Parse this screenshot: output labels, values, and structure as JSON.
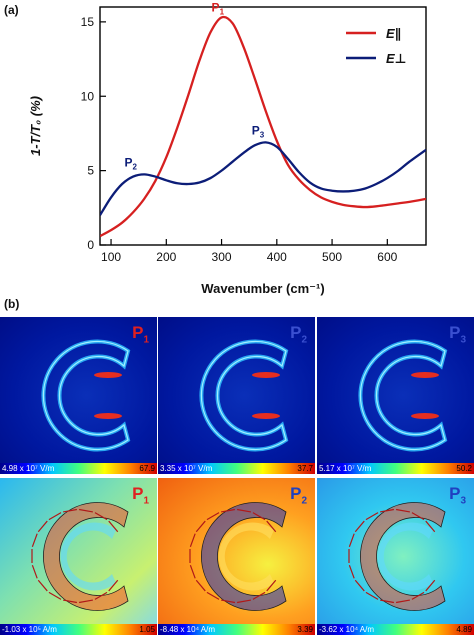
{
  "panel_a_label": "(a)",
  "panel_b_label": "(b)",
  "chart_data": {
    "type": "line",
    "xlabel": "Wavenumber (cm⁻¹)",
    "ylabel": "1-T/T₀ (%)",
    "xlim": [
      80,
      670
    ],
    "ylim": [
      0,
      16
    ],
    "xticks": [
      100,
      200,
      300,
      400,
      500,
      600
    ],
    "yticks": [
      0,
      5,
      10,
      15
    ],
    "legend_position": "top-right",
    "series": [
      {
        "name": "E∥",
        "color": "#d62020",
        "x": [
          80,
          100,
          120,
          140,
          160,
          180,
          200,
          220,
          240,
          260,
          280,
          300,
          320,
          340,
          360,
          380,
          400,
          420,
          440,
          460,
          480,
          500,
          520,
          540,
          560,
          580,
          600,
          620,
          640,
          670
        ],
        "y": [
          0.6,
          1.0,
          1.5,
          2.2,
          3.1,
          4.3,
          5.9,
          7.9,
          10.1,
          12.4,
          14.3,
          15.3,
          14.9,
          13.3,
          11.2,
          9.0,
          7.0,
          5.4,
          4.4,
          3.7,
          3.2,
          2.9,
          2.7,
          2.6,
          2.55,
          2.6,
          2.7,
          2.8,
          2.9,
          3.1
        ]
      },
      {
        "name": "E⊥",
        "color": "#0c1d78",
        "x": [
          80,
          100,
          120,
          140,
          160,
          180,
          200,
          220,
          240,
          260,
          280,
          300,
          320,
          340,
          360,
          380,
          400,
          420,
          440,
          460,
          480,
          500,
          520,
          540,
          560,
          580,
          600,
          620,
          640,
          670
        ],
        "y": [
          2.0,
          3.2,
          4.1,
          4.6,
          4.75,
          4.6,
          4.35,
          4.15,
          4.1,
          4.2,
          4.5,
          5.0,
          5.6,
          6.2,
          6.7,
          6.9,
          6.6,
          5.8,
          4.9,
          4.2,
          3.8,
          3.65,
          3.6,
          3.65,
          3.8,
          4.1,
          4.5,
          5.0,
          5.6,
          6.4
        ]
      }
    ],
    "annotations": [
      {
        "main": "P",
        "sub": "1",
        "x": 300,
        "y": 15.3,
        "color": "#d62020"
      },
      {
        "main": "P",
        "sub": "2",
        "x": 157,
        "y": 4.75,
        "color": "#0c1d78"
      },
      {
        "main": "P",
        "sub": "3",
        "x": 380,
        "y": 6.9,
        "color": "#0c1d78"
      }
    ]
  },
  "maps": {
    "top_row": [
      {
        "tag": "P",
        "sub": "1",
        "tag_color": "#e02020",
        "cbar_min": "4.98 x 10⁷ V/m",
        "cbar_max": "67.9"
      },
      {
        "tag": "P",
        "sub": "2",
        "tag_color": "#3a50d0",
        "cbar_min": "3.35 x 10⁷ V/m",
        "cbar_max": "37.7"
      },
      {
        "tag": "P",
        "sub": "3",
        "tag_color": "#3a50d0",
        "cbar_min": "5.17 x 10⁷ V/m",
        "cbar_max": "50.2"
      }
    ],
    "bottom_row": [
      {
        "tag": "P",
        "sub": "1",
        "tag_color": "#e02020",
        "cbar_min": "-1.03 x 10⁵ A/m",
        "cbar_max": "1.05"
      },
      {
        "tag": "P",
        "sub": "2",
        "tag_color": "#2040c0",
        "cbar_min": "-8.48 x 10⁴ A/m",
        "cbar_max": "3.39"
      },
      {
        "tag": "P",
        "sub": "3",
        "tag_color": "#2040c0",
        "cbar_min": "-3.62 x 10⁴ A/m",
        "cbar_max": "4.89"
      }
    ]
  }
}
